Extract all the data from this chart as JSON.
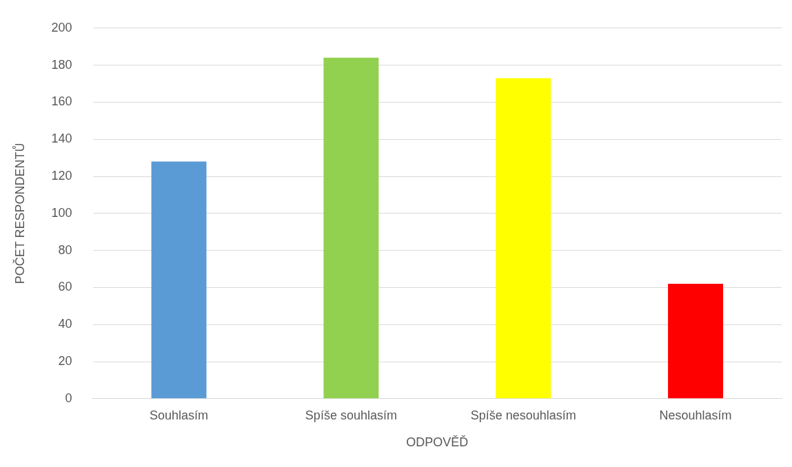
{
  "chart_data": {
    "type": "bar",
    "xlabel": "ODPOVĚĎ",
    "ylabel": "POČET RESPONDENTŮ",
    "categories": [
      "Souhlasím",
      "Spíše souhlasím",
      "Spíše nesouhlasím",
      "Nesouhlasím"
    ],
    "values": [
      128,
      184,
      173,
      62
    ],
    "colors": [
      "#5b9bd5",
      "#92d050",
      "#ffff00",
      "#ff0000"
    ],
    "ylim": [
      0,
      200
    ],
    "yticks": [
      0,
      20,
      40,
      60,
      80,
      100,
      120,
      140,
      160,
      180,
      200
    ],
    "grid": "y"
  }
}
